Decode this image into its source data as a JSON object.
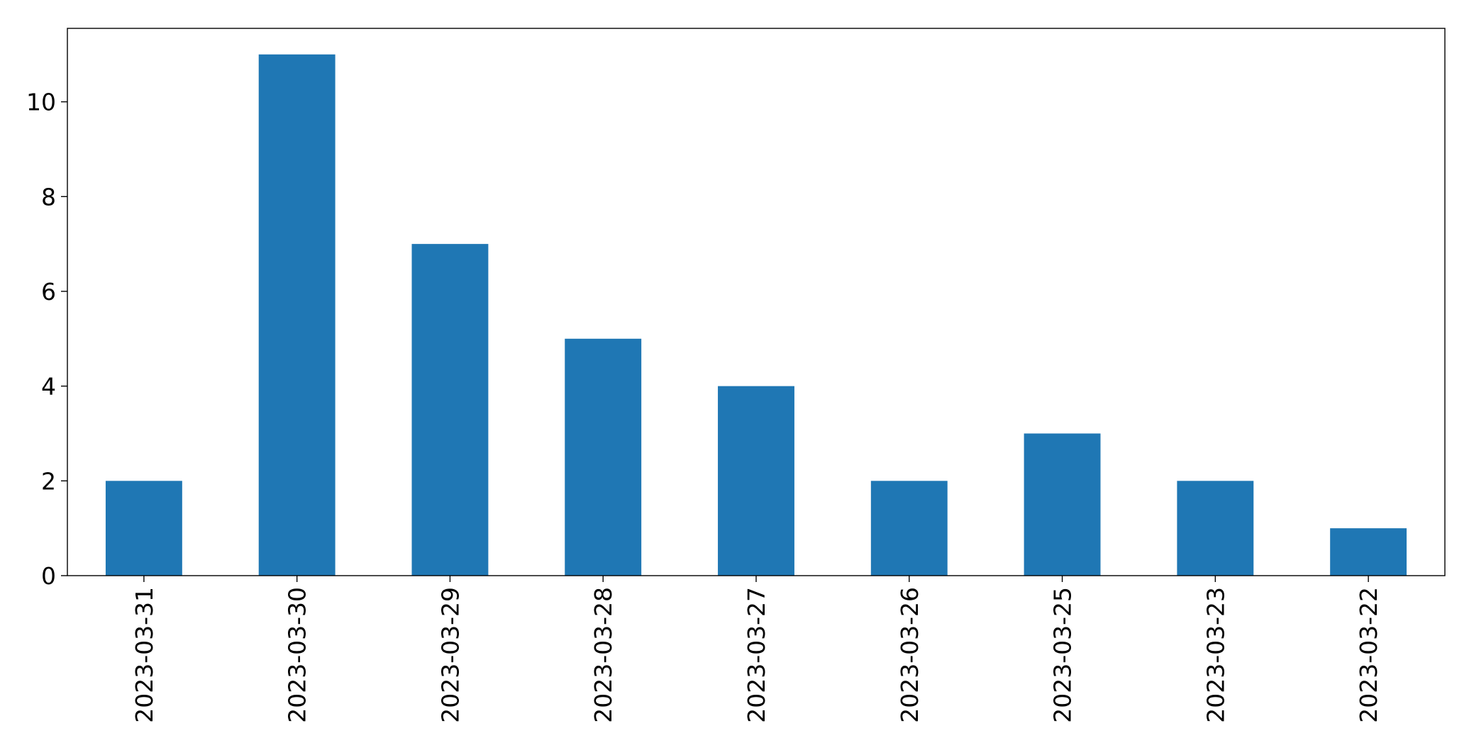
{
  "chart_data": {
    "type": "bar",
    "title": "",
    "xlabel": "",
    "ylabel": "",
    "categories": [
      "2023-03-31",
      "2023-03-30",
      "2023-03-29",
      "2023-03-28",
      "2023-03-27",
      "2023-03-26",
      "2023-03-25",
      "2023-03-23",
      "2023-03-22"
    ],
    "values": [
      2,
      11,
      7,
      5,
      4,
      2,
      3,
      2,
      1
    ],
    "ylim": [
      0,
      11.55
    ],
    "yticks": [
      0,
      2,
      4,
      6,
      8,
      10
    ],
    "bar_color": "#1f77b4",
    "grid": false,
    "legend": "none"
  }
}
